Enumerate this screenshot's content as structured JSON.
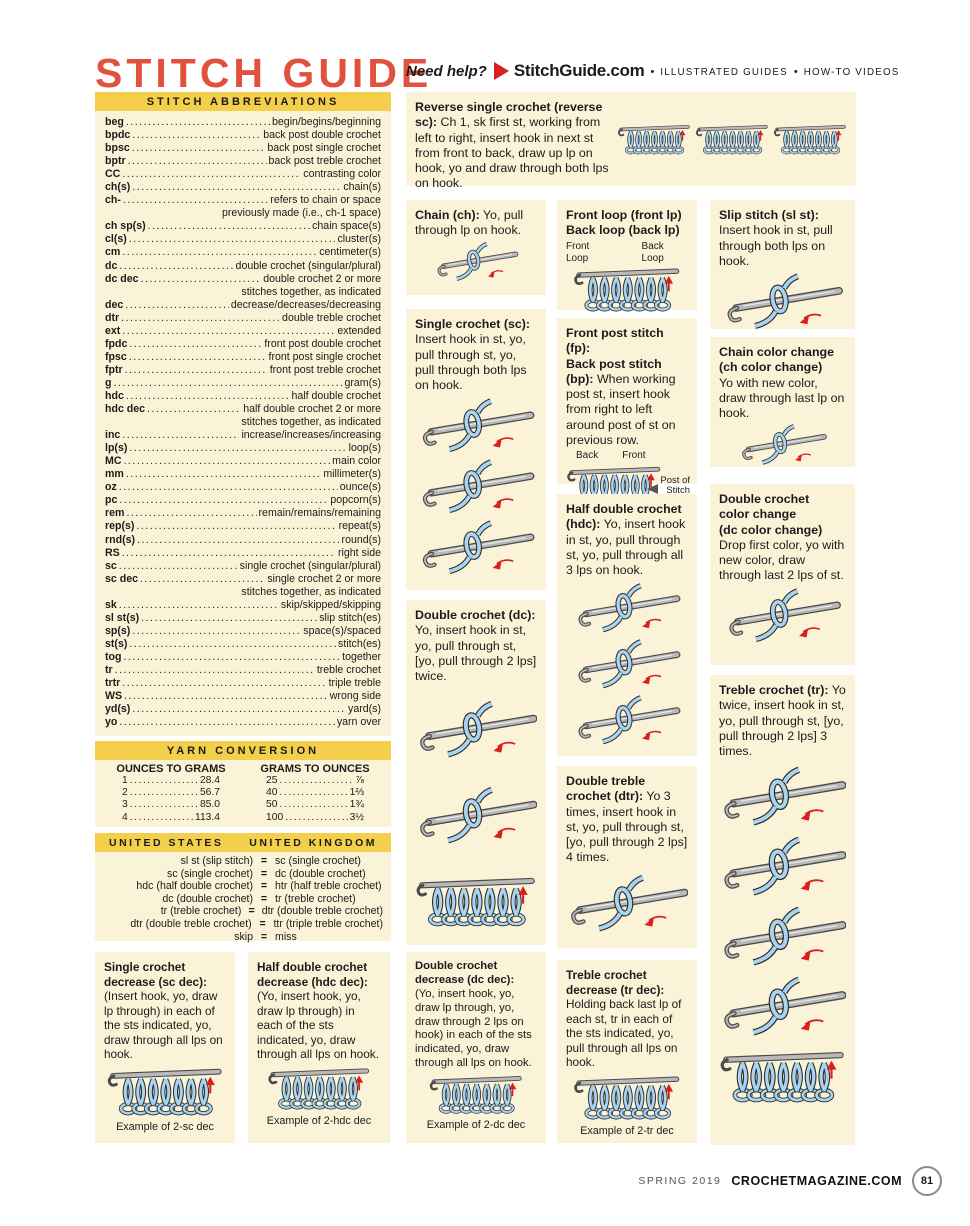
{
  "page": {
    "title": "STITCH GUIDE",
    "footer": {
      "issue": "SPRING 2019",
      "site": "CROCHETMAGAZINE.COM",
      "page_number": "81"
    }
  },
  "colors": {
    "title_red": "#E2513E",
    "header_yellow": "#F3CF4B",
    "box_cream": "#FBF3D8",
    "yarn_blue": "#A9D3EE",
    "arrow_red": "#D8201F"
  },
  "help_bar": {
    "need_help": "Need help?",
    "site": "StitchGuide.com",
    "separator": "•",
    "items": [
      "ILLUSTRATED GUIDES",
      "HOW-TO VIDEOS"
    ]
  },
  "abbreviations": {
    "header": "STITCH ABBREVIATIONS",
    "entries": [
      {
        "abbr": "beg",
        "meaning": "begin/begins/beginning"
      },
      {
        "abbr": "bpdc",
        "meaning": "back post double crochet"
      },
      {
        "abbr": "bpsc",
        "meaning": "back post single crochet"
      },
      {
        "abbr": "bptr",
        "meaning": "back post treble crochet"
      },
      {
        "abbr": "CC",
        "meaning": "contrasting color"
      },
      {
        "abbr": "ch(s)",
        "meaning": "chain(s)"
      },
      {
        "abbr": "ch-",
        "meaning": "refers to chain or space",
        "meaning2": "previously made (i.e., ch-1 space)"
      },
      {
        "abbr": "ch sp(s)",
        "meaning": "chain space(s)"
      },
      {
        "abbr": "cl(s)",
        "meaning": "cluster(s)"
      },
      {
        "abbr": "cm",
        "meaning": "centimeter(s)"
      },
      {
        "abbr": "dc",
        "meaning": "double crochet (singular/plural)"
      },
      {
        "abbr": "dc dec",
        "meaning": "double crochet 2 or more",
        "meaning2": "stitches together, as indicated"
      },
      {
        "abbr": "dec",
        "meaning": "decrease/decreases/decreasing"
      },
      {
        "abbr": "dtr",
        "meaning": "double treble crochet"
      },
      {
        "abbr": "ext",
        "meaning": "extended"
      },
      {
        "abbr": "fpdc",
        "meaning": "front post double crochet"
      },
      {
        "abbr": "fpsc",
        "meaning": "front post single crochet"
      },
      {
        "abbr": "fptr",
        "meaning": "front post treble crochet"
      },
      {
        "abbr": "g",
        "meaning": "gram(s)"
      },
      {
        "abbr": "hdc",
        "meaning": "half double crochet"
      },
      {
        "abbr": "hdc dec",
        "meaning": "half double crochet 2 or more",
        "meaning2": "stitches together, as indicated"
      },
      {
        "abbr": "inc",
        "meaning": "increase/increases/increasing"
      },
      {
        "abbr": "lp(s)",
        "meaning": "loop(s)"
      },
      {
        "abbr": "MC",
        "meaning": "main color"
      },
      {
        "abbr": "mm",
        "meaning": "millimeter(s)"
      },
      {
        "abbr": "oz",
        "meaning": "ounce(s)"
      },
      {
        "abbr": "pc",
        "meaning": "popcorn(s)"
      },
      {
        "abbr": "rem",
        "meaning": "remain/remains/remaining"
      },
      {
        "abbr": "rep(s)",
        "meaning": "repeat(s)"
      },
      {
        "abbr": "rnd(s)",
        "meaning": "round(s)"
      },
      {
        "abbr": "RS",
        "meaning": "right side"
      },
      {
        "abbr": "sc",
        "meaning": "single crochet (singular/plural)"
      },
      {
        "abbr": "sc dec",
        "meaning": "single crochet 2 or more",
        "meaning2": "stitches together, as indicated"
      },
      {
        "abbr": "sk",
        "meaning": "skip/skipped/skipping"
      },
      {
        "abbr": "sl st(s)",
        "meaning": "slip stitch(es)"
      },
      {
        "abbr": "sp(s)",
        "meaning": "space(s)/spaced"
      },
      {
        "abbr": "st(s)",
        "meaning": "stitch(es)"
      },
      {
        "abbr": "tog",
        "meaning": "together"
      },
      {
        "abbr": "tr",
        "meaning": "treble crochet"
      },
      {
        "abbr": "trtr",
        "meaning": "triple treble"
      },
      {
        "abbr": "WS",
        "meaning": "wrong side"
      },
      {
        "abbr": "yd(s)",
        "meaning": "yard(s)"
      },
      {
        "abbr": "yo",
        "meaning": "yarn over"
      }
    ]
  },
  "yarn_conversion": {
    "header": "YARN CONVERSION",
    "ounces_to_grams": {
      "header": "OUNCES TO GRAMS",
      "rows": [
        {
          "n": "1",
          "v": "28.4"
        },
        {
          "n": "2",
          "v": "56.7"
        },
        {
          "n": "3",
          "v": "85.0"
        },
        {
          "n": "4",
          "v": "113.4"
        }
      ]
    },
    "grams_to_ounces": {
      "header": "GRAMS TO OUNCES",
      "rows": [
        {
          "n": "25",
          "v": "⅞"
        },
        {
          "n": "40",
          "v": "1⅔"
        },
        {
          "n": "50",
          "v": "1¾"
        },
        {
          "n": "100",
          "v": "3½"
        }
      ]
    }
  },
  "usuk": {
    "header_us": "UNITED STATES",
    "header_uk": "UNITED KINGDOM",
    "eq": "=",
    "rows": [
      {
        "us": "sl st (slip stitch)",
        "uk": "sc (single crochet)"
      },
      {
        "us": "sc (single crochet)",
        "uk": "dc (double crochet)"
      },
      {
        "us": "hdc (half double crochet)",
        "uk": "htr (half treble crochet)"
      },
      {
        "us": "dc (double crochet)",
        "uk": "tr (treble crochet)"
      },
      {
        "us": "tr (treble crochet)",
        "uk": "dtr (double treble crochet)"
      },
      {
        "us": "dtr (double treble crochet)",
        "uk": "ttr (triple treble crochet)"
      },
      {
        "us": "skip",
        "uk": "miss"
      }
    ]
  },
  "boxes": {
    "reverse_sc": {
      "title": "Reverse single crochet (reverse sc):",
      "body": "Ch 1, sk first st, working from left to right, insert hook in next st from front to back, draw up lp on hook, yo and draw through both lps on hook."
    },
    "chain": {
      "title": "Chain (ch):",
      "body": "Yo, pull through lp on hook."
    },
    "front_back_loop": {
      "title1": "Front loop (front lp)",
      "title2": "Back loop (back lp)",
      "label_front": "Front Loop",
      "label_back": "Back Loop"
    },
    "slip_stitch": {
      "title": "Slip stitch (sl st):",
      "body": "Insert hook in st, pull through both lps on hook."
    },
    "single_crochet": {
      "title": "Single crochet (sc):",
      "body": "Insert hook in st, yo, pull through st, yo, pull through both lps on hook."
    },
    "post_stitch": {
      "title1": "Front post stitch (fp):",
      "title2": "Back post stitch (bp):",
      "body": "When working post st, insert hook from right to left around post of st on previous row.",
      "label_back": "Back",
      "label_front": "Front",
      "label_post": "Post of Stitch"
    },
    "chain_color": {
      "title1": "Chain color change",
      "title2": "(ch color change)",
      "body": "Yo with new color, draw through last lp on hook."
    },
    "half_double": {
      "title": "Half double crochet (hdc):",
      "body": "Yo, insert hook in st, yo, pull through st, yo, pull through all 3 lps on hook."
    },
    "dc_color": {
      "title1": "Double crochet",
      "title2": "color change",
      "title3": "(dc color change)",
      "body": "Drop first color, yo with new color, draw through last 2 lps of st."
    },
    "double_crochet": {
      "title": "Double crochet (dc):",
      "body": "Yo, insert hook in st, yo, pull through st, [yo, pull through 2 lps] twice."
    },
    "treble": {
      "title": "Treble crochet (tr):",
      "body": "Yo twice, insert hook in st, yo, pull through st, [yo, pull through 2 lps] 3 times."
    },
    "double_treble": {
      "title": "Double treble crochet (dtr):",
      "body": "Yo 3 times, insert hook in st, yo, pull through st, [yo, pull through 2 lps] 4 times."
    },
    "sc_dec": {
      "title": "Single crochet decrease (sc dec):",
      "body": "(Insert hook, yo, draw lp through) in each of the sts indicated, yo, draw through all lps on hook.",
      "caption": "Example of 2-sc dec"
    },
    "hdc_dec": {
      "title": "Half double crochet decrease (hdc dec):",
      "body": "(Yo, insert hook, yo, draw lp through) in each of the sts indicated, yo, draw through all lps on hook.",
      "caption": "Example of 2-hdc dec"
    },
    "dc_dec": {
      "title": "Double crochet decrease (dc dec):",
      "body": "(Yo, insert hook, yo, draw lp through, yo, draw through 2 lps on hook) in each of the sts indicated, yo, draw through all lps on hook.",
      "caption": "Example of 2-dc dec"
    },
    "tr_dec": {
      "title": "Treble crochet decrease (tr dec):",
      "body": "Holding back last lp of each st, tr in each of the sts indicated, yo, pull through all lps on hook.",
      "caption": "Example of 2-tr dec"
    }
  }
}
